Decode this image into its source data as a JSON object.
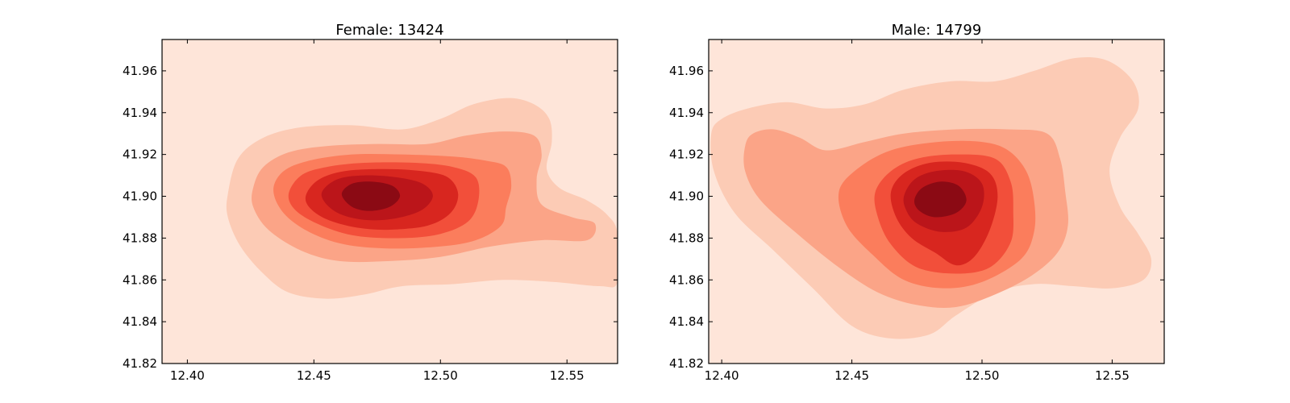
{
  "chart_data": [
    {
      "type": "kde_filled_contour",
      "title": "Female: 13424",
      "xlim": [
        12.39,
        12.57
      ],
      "ylim": [
        41.82,
        41.975
      ],
      "xticks": [
        "12.40",
        "12.45",
        "12.50",
        "12.55"
      ],
      "yticks": [
        "41.82",
        "41.84",
        "41.86",
        "41.88",
        "41.90",
        "41.92",
        "41.94",
        "41.96"
      ],
      "grid": false,
      "levels": [
        {
          "level": 1,
          "color": "#fee5d9",
          "polygon": [
            [
              12.39,
              41.82
            ],
            [
              12.57,
              41.82
            ],
            [
              12.57,
              41.975
            ],
            [
              12.39,
              41.975
            ]
          ]
        },
        {
          "level": 2,
          "color": "#fccbb5",
          "polygon": [
            [
              12.416,
              41.901
            ],
            [
              12.42,
              41.918
            ],
            [
              12.43,
              41.928
            ],
            [
              12.445,
              41.933
            ],
            [
              12.465,
              41.934
            ],
            [
              12.485,
              41.932
            ],
            [
              12.5,
              41.937
            ],
            [
              12.513,
              41.944
            ],
            [
              12.527,
              41.947
            ],
            [
              12.537,
              41.944
            ],
            [
              12.543,
              41.937
            ],
            [
              12.544,
              41.926
            ],
            [
              12.542,
              41.913
            ],
            [
              12.547,
              41.904
            ],
            [
              12.558,
              41.898
            ],
            [
              12.566,
              41.891
            ],
            [
              12.57,
              41.882
            ],
            [
              12.57,
              41.859
            ],
            [
              12.563,
              41.857
            ],
            [
              12.545,
              41.859
            ],
            [
              12.525,
              41.86
            ],
            [
              12.505,
              41.858
            ],
            [
              12.485,
              41.857
            ],
            [
              12.47,
              41.853
            ],
            [
              12.455,
              41.851
            ],
            [
              12.44,
              41.854
            ],
            [
              12.43,
              41.863
            ],
            [
              12.421,
              41.876
            ],
            [
              12.416,
              41.89
            ]
          ]
        },
        {
          "level": 3,
          "color": "#fba487",
          "polygon": [
            [
              12.426,
              41.904
            ],
            [
              12.43,
              41.914
            ],
            [
              12.44,
              41.921
            ],
            [
              12.455,
              41.924
            ],
            [
              12.475,
              41.925
            ],
            [
              12.495,
              41.925
            ],
            [
              12.51,
              41.929
            ],
            [
              12.525,
              41.931
            ],
            [
              12.537,
              41.929
            ],
            [
              12.54,
              41.92
            ],
            [
              12.538,
              41.908
            ],
            [
              12.54,
              41.896
            ],
            [
              12.552,
              41.89
            ],
            [
              12.561,
              41.887
            ],
            [
              12.558,
              41.879
            ],
            [
              12.54,
              41.879
            ],
            [
              12.52,
              41.876
            ],
            [
              12.5,
              41.871
            ],
            [
              12.48,
              41.869
            ],
            [
              12.46,
              41.869
            ],
            [
              12.445,
              41.874
            ],
            [
              12.432,
              41.884
            ],
            [
              12.426,
              41.895
            ]
          ]
        },
        {
          "level": 4,
          "color": "#fb7d5c",
          "polygon": [
            [
              12.434,
              41.903
            ],
            [
              12.438,
              41.912
            ],
            [
              12.448,
              41.917
            ],
            [
              12.465,
              41.92
            ],
            [
              12.485,
              41.92
            ],
            [
              12.505,
              41.919
            ],
            [
              12.518,
              41.917
            ],
            [
              12.526,
              41.914
            ],
            [
              12.528,
              41.905
            ],
            [
              12.526,
              41.895
            ],
            [
              12.524,
              41.886
            ],
            [
              12.514,
              41.879
            ],
            [
              12.5,
              41.876
            ],
            [
              12.48,
              41.875
            ],
            [
              12.462,
              41.877
            ],
            [
              12.448,
              41.883
            ],
            [
              12.438,
              41.892
            ]
          ]
        },
        {
          "level": 5,
          "color": "#f24f3a",
          "polygon": [
            [
              12.44,
              41.901
            ],
            [
              12.445,
              41.91
            ],
            [
              12.455,
              41.914
            ],
            [
              12.47,
              41.916
            ],
            [
              12.49,
              41.916
            ],
            [
              12.505,
              41.914
            ],
            [
              12.514,
              41.909
            ],
            [
              12.515,
              41.898
            ],
            [
              12.511,
              41.888
            ],
            [
              12.5,
              41.882
            ],
            [
              12.485,
              41.88
            ],
            [
              12.467,
              41.881
            ],
            [
              12.453,
              41.886
            ],
            [
              12.443,
              41.893
            ]
          ]
        },
        {
          "level": 6,
          "color": "#d8261f",
          "polygon": [
            [
              12.447,
              41.901
            ],
            [
              12.452,
              41.908
            ],
            [
              12.462,
              41.912
            ],
            [
              12.478,
              41.913
            ],
            [
              12.493,
              41.912
            ],
            [
              12.503,
              41.909
            ],
            [
              12.507,
              41.901
            ],
            [
              12.504,
              41.892
            ],
            [
              12.495,
              41.886
            ],
            [
              12.48,
              41.884
            ],
            [
              12.467,
              41.885
            ],
            [
              12.455,
              41.889
            ],
            [
              12.448,
              41.895
            ]
          ]
        },
        {
          "level": 7,
          "color": "#bb151a",
          "polygon": [
            [
              12.453,
              41.901
            ],
            [
              12.459,
              41.908
            ],
            [
              12.47,
              41.91
            ],
            [
              12.483,
              41.909
            ],
            [
              12.493,
              41.906
            ],
            [
              12.497,
              41.9
            ],
            [
              12.492,
              41.893
            ],
            [
              12.48,
              41.889
            ],
            [
              12.468,
              41.889
            ],
            [
              12.458,
              41.893
            ]
          ]
        },
        {
          "level": 8,
          "color": "#8b0a14",
          "polygon": [
            [
              12.461,
              41.901
            ],
            [
              12.465,
              41.906
            ],
            [
              12.473,
              41.907
            ],
            [
              12.481,
              41.905
            ],
            [
              12.484,
              41.9
            ],
            [
              12.48,
              41.895
            ],
            [
              12.472,
              41.893
            ],
            [
              12.465,
              41.895
            ]
          ]
        }
      ]
    },
    {
      "type": "kde_filled_contour",
      "title": "Male: 14799",
      "xlim": [
        12.395,
        12.57
      ],
      "ylim": [
        41.82,
        41.975
      ],
      "xticks": [
        "12.40",
        "12.45",
        "12.50",
        "12.55"
      ],
      "yticks": [
        "41.82",
        "41.84",
        "41.86",
        "41.88",
        "41.90",
        "41.92",
        "41.94",
        "41.96"
      ],
      "grid": false,
      "levels": [
        {
          "level": 1,
          "color": "#fee5d9",
          "polygon": [
            [
              12.395,
              41.82
            ],
            [
              12.57,
              41.82
            ],
            [
              12.57,
              41.975
            ],
            [
              12.395,
              41.975
            ]
          ]
        },
        {
          "level": 2,
          "color": "#fccbb5",
          "polygon": [
            [
              12.396,
              41.93
            ],
            [
              12.4,
              41.937
            ],
            [
              12.41,
              41.942
            ],
            [
              12.425,
              41.945
            ],
            [
              12.44,
              41.942
            ],
            [
              12.455,
              41.944
            ],
            [
              12.47,
              41.951
            ],
            [
              12.488,
              41.955
            ],
            [
              12.505,
              41.955
            ],
            [
              12.52,
              41.96
            ],
            [
              12.535,
              41.966
            ],
            [
              12.548,
              41.965
            ],
            [
              12.558,
              41.955
            ],
            [
              12.56,
              41.942
            ],
            [
              12.553,
              41.928
            ],
            [
              12.549,
              41.912
            ],
            [
              12.553,
              41.895
            ],
            [
              12.56,
              41.882
            ],
            [
              12.565,
              41.87
            ],
            [
              12.562,
              41.86
            ],
            [
              12.55,
              41.856
            ],
            [
              12.535,
              41.857
            ],
            [
              12.52,
              41.858
            ],
            [
              12.505,
              41.854
            ],
            [
              12.49,
              41.843
            ],
            [
              12.48,
              41.834
            ],
            [
              12.465,
              41.832
            ],
            [
              12.45,
              41.838
            ],
            [
              12.435,
              41.856
            ],
            [
              12.42,
              41.874
            ],
            [
              12.405,
              41.892
            ],
            [
              12.397,
              41.912
            ]
          ]
        },
        {
          "level": 3,
          "color": "#fba487",
          "polygon": [
            [
              12.409,
              41.924
            ],
            [
              12.412,
              41.93
            ],
            [
              12.42,
              41.932
            ],
            [
              12.43,
              41.928
            ],
            [
              12.44,
              41.922
            ],
            [
              12.455,
              41.926
            ],
            [
              12.47,
              41.93
            ],
            [
              12.49,
              41.932
            ],
            [
              12.51,
              41.932
            ],
            [
              12.525,
              41.93
            ],
            [
              12.53,
              41.918
            ],
            [
              12.532,
              41.902
            ],
            [
              12.533,
              41.886
            ],
            [
              12.529,
              41.873
            ],
            [
              12.519,
              41.862
            ],
            [
              12.505,
              41.853
            ],
            [
              12.49,
              41.847
            ],
            [
              12.475,
              41.848
            ],
            [
              12.46,
              41.854
            ],
            [
              12.445,
              41.866
            ],
            [
              12.43,
              41.881
            ],
            [
              12.415,
              41.898
            ],
            [
              12.409,
              41.912
            ]
          ]
        },
        {
          "level": 4,
          "color": "#fb7d5c",
          "polygon": [
            [
              12.445,
              41.902
            ],
            [
              12.452,
              41.913
            ],
            [
              12.465,
              41.922
            ],
            [
              12.483,
              41.926
            ],
            [
              12.5,
              41.926
            ],
            [
              12.51,
              41.922
            ],
            [
              12.517,
              41.912
            ],
            [
              12.52,
              41.898
            ],
            [
              12.52,
              41.883
            ],
            [
              12.515,
              41.87
            ],
            [
              12.5,
              41.859
            ],
            [
              12.485,
              41.856
            ],
            [
              12.47,
              41.86
            ],
            [
              12.458,
              41.872
            ],
            [
              12.448,
              41.886
            ]
          ]
        },
        {
          "level": 5,
          "color": "#f24f3a",
          "polygon": [
            [
              12.459,
              41.902
            ],
            [
              12.465,
              41.912
            ],
            [
              12.475,
              41.918
            ],
            [
              12.49,
              41.92
            ],
            [
              12.505,
              41.918
            ],
            [
              12.511,
              41.907
            ],
            [
              12.512,
              41.893
            ],
            [
              12.511,
              41.878
            ],
            [
              12.503,
              41.866
            ],
            [
              12.49,
              41.863
            ],
            [
              12.475,
              41.866
            ],
            [
              12.465,
              41.877
            ],
            [
              12.46,
              41.89
            ]
          ]
        },
        {
          "level": 6,
          "color": "#d8261f",
          "polygon": [
            [
              12.465,
              41.902
            ],
            [
              12.47,
              41.911
            ],
            [
              12.48,
              41.916
            ],
            [
              12.493,
              41.916
            ],
            [
              12.503,
              41.911
            ],
            [
              12.506,
              41.9
            ],
            [
              12.503,
              41.884
            ],
            [
              12.497,
              41.871
            ],
            [
              12.49,
              41.867
            ],
            [
              12.482,
              41.873
            ],
            [
              12.473,
              41.88
            ],
            [
              12.467,
              41.89
            ]
          ]
        },
        {
          "level": 7,
          "color": "#bb151a",
          "polygon": [
            [
              12.47,
              41.9
            ],
            [
              12.474,
              41.908
            ],
            [
              12.482,
              41.912
            ],
            [
              12.493,
              41.912
            ],
            [
              12.5,
              41.906
            ],
            [
              12.5,
              41.895
            ],
            [
              12.494,
              41.885
            ],
            [
              12.484,
              41.883
            ],
            [
              12.475,
              41.887
            ],
            [
              12.471,
              41.893
            ]
          ]
        },
        {
          "level": 8,
          "color": "#8b0a14",
          "polygon": [
            [
              12.474,
              41.898
            ],
            [
              12.477,
              41.904
            ],
            [
              12.484,
              41.907
            ],
            [
              12.491,
              41.905
            ],
            [
              12.494,
              41.898
            ],
            [
              12.49,
              41.892
            ],
            [
              12.482,
              41.89
            ],
            [
              12.476,
              41.893
            ]
          ]
        }
      ]
    }
  ]
}
